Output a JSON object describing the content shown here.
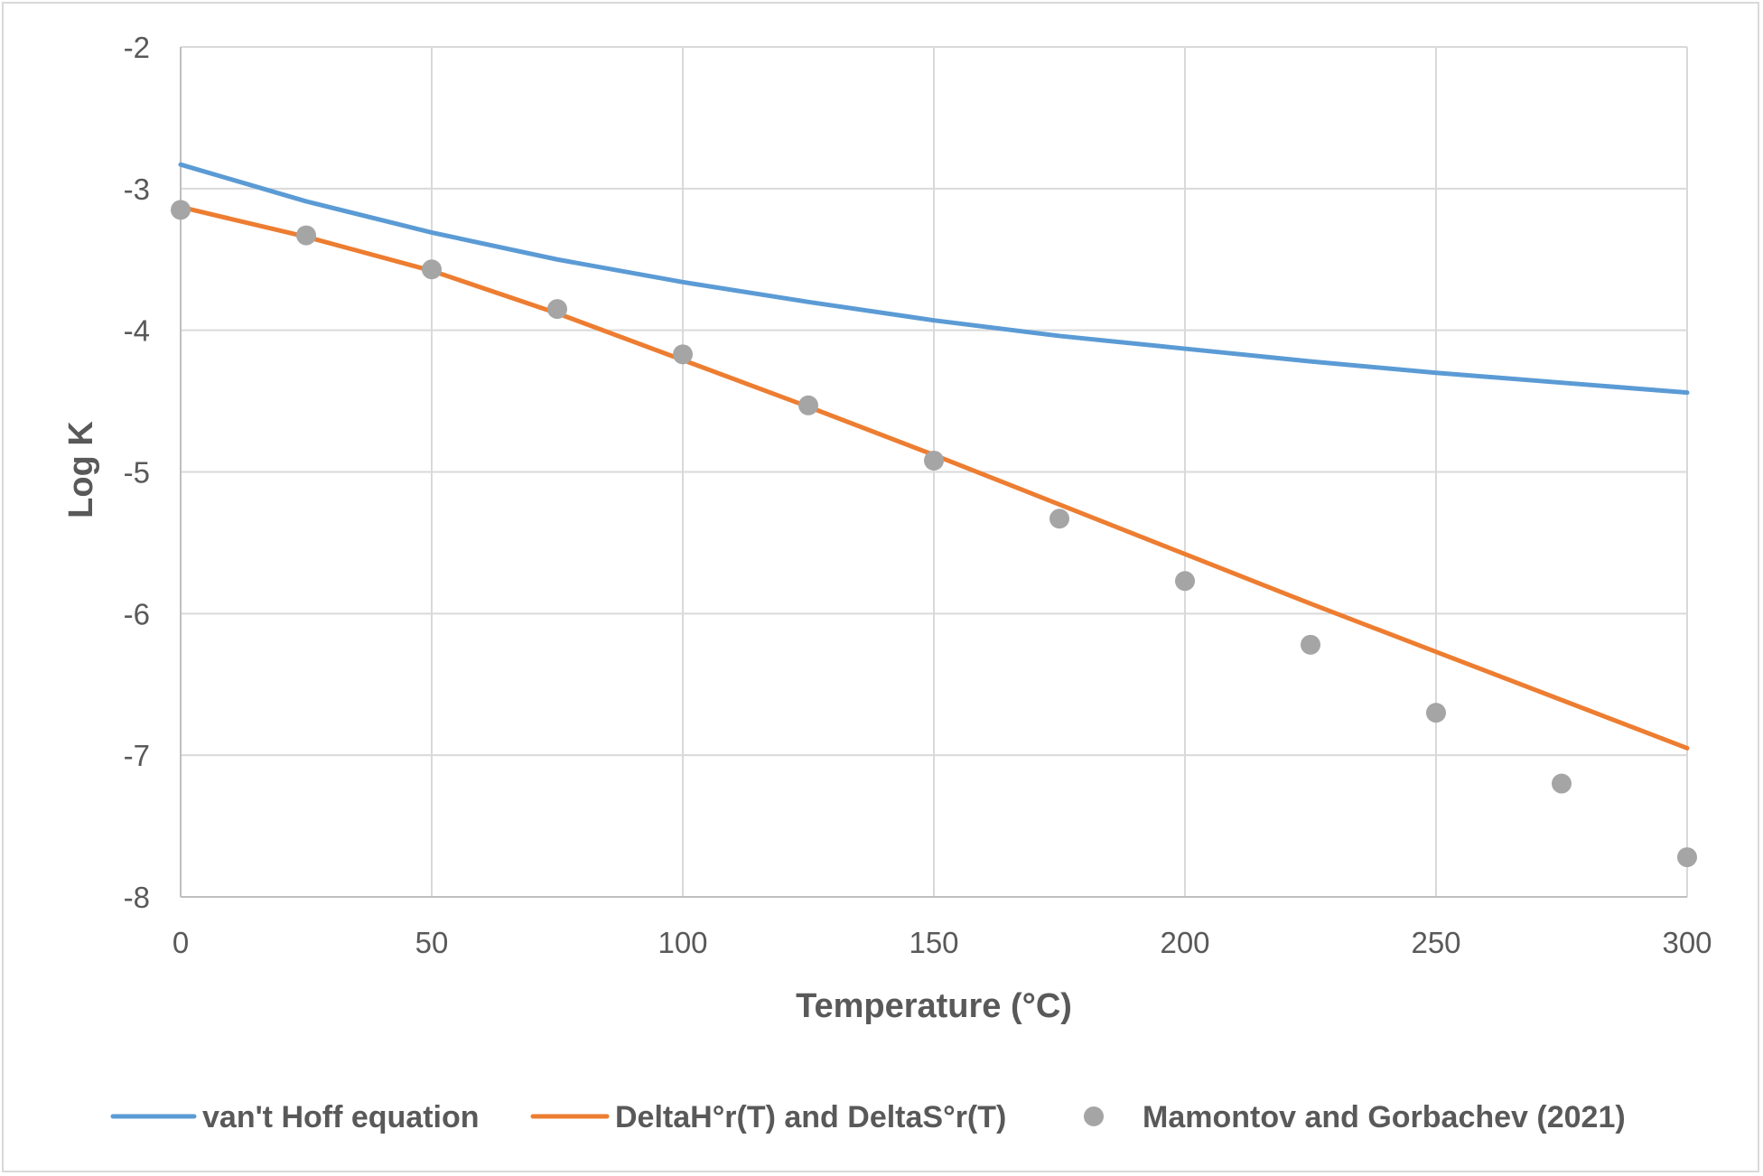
{
  "chart_data": {
    "type": "line",
    "title": "",
    "xlabel": "Temperature (°C)",
    "ylabel": "Log K",
    "xlim": [
      0,
      300
    ],
    "ylim": [
      -8,
      -2
    ],
    "x_ticks": [
      0,
      50,
      100,
      150,
      200,
      250,
      300
    ],
    "y_ticks": [
      -2,
      -3,
      -4,
      -5,
      -6,
      -7,
      -8
    ],
    "grid": true,
    "legend_position": "bottom",
    "series": [
      {
        "name": "van't Hoff equation",
        "kind": "line",
        "color": "#5b9bd5",
        "x": [
          0,
          25,
          50,
          75,
          100,
          125,
          150,
          175,
          200,
          225,
          250,
          275,
          300
        ],
        "y": [
          -2.83,
          -3.09,
          -3.31,
          -3.5,
          -3.66,
          -3.8,
          -3.93,
          -4.04,
          -4.13,
          -4.22,
          -4.3,
          -4.37,
          -4.44
        ]
      },
      {
        "name": "DeltaH°r(T) and DeltaS°r(T)",
        "kind": "line",
        "color": "#ed7d31",
        "x": [
          0,
          25,
          50,
          75,
          100,
          125,
          150,
          175,
          200,
          225,
          250,
          275,
          300
        ],
        "y": [
          -3.13,
          -3.34,
          -3.58,
          -3.88,
          -4.21,
          -4.54,
          -4.88,
          -5.23,
          -5.58,
          -5.93,
          -6.27,
          -6.61,
          -6.95
        ]
      },
      {
        "name": "Mamontov and Gorbachev (2021)",
        "kind": "scatter",
        "color": "#a5a5a5",
        "x": [
          0,
          25,
          50,
          75,
          100,
          125,
          150,
          175,
          200,
          225,
          250,
          275,
          300
        ],
        "y": [
          -3.15,
          -3.33,
          -3.57,
          -3.85,
          -4.17,
          -4.53,
          -4.92,
          -5.33,
          -5.77,
          -6.22,
          -6.7,
          -7.2,
          -7.72
        ]
      }
    ]
  }
}
